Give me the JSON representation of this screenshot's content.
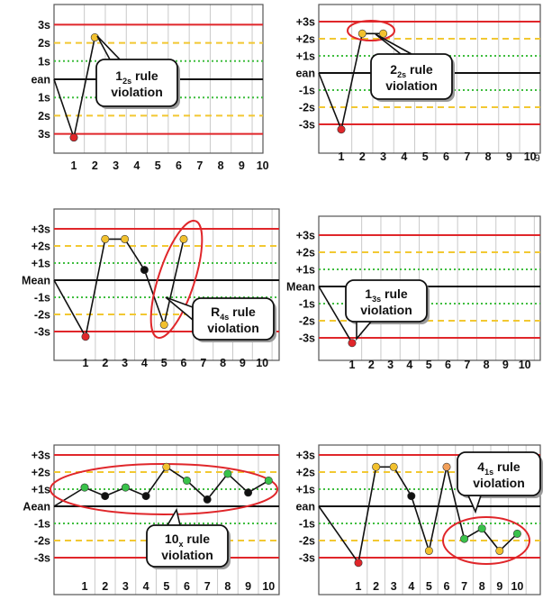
{
  "colors": {
    "sd3": "#e0262a",
    "sd2": "#f2c832",
    "sd1": "#3fbd3f",
    "mean": "#111111",
    "grid": "#c9c9c9",
    "point_red": "#e0262a",
    "point_yellow": "#f2c12e",
    "point_green": "#39c24a",
    "point_black": "#111111",
    "point_orange": "#f2a05a"
  },
  "panels": [
    {
      "id": "panel-1s-2",
      "y_labels": {
        "p3": "3s",
        "p2": "2s",
        "p1": "1s",
        "mean": "ean",
        "m1": "1s",
        "m2": "2s",
        "m3": "3s"
      },
      "x_labels": [
        "1",
        "2",
        "3",
        "4",
        "5",
        "6",
        "7",
        "8",
        "9",
        "10"
      ],
      "points": [
        {
          "x": 1,
          "y": -3.2,
          "c": "red"
        },
        {
          "x": 2,
          "y": 2.3,
          "c": "yellow"
        }
      ],
      "callout": {
        "line1": "1",
        "sub": "2s",
        "after": " rule",
        "line2": "violation"
      },
      "highlight": null
    },
    {
      "id": "panel-2-2s",
      "y_labels": {
        "p3": "+3s",
        "p2": "+2s",
        "p1": "+1s",
        "mean": "ean",
        "m1": "-1s",
        "m2": "-2s",
        "m3": "-3s"
      },
      "x_labels": [
        "1",
        "2",
        "3",
        "4",
        "5",
        "6",
        "7",
        "8",
        "9",
        "10"
      ],
      "points": [
        {
          "x": 1,
          "y": -3.3,
          "c": "red"
        },
        {
          "x": 2,
          "y": 2.3,
          "c": "yellow"
        },
        {
          "x": 3,
          "y": 2.3,
          "c": "yellow"
        }
      ],
      "callout": {
        "line1": "2",
        "sub": "2s",
        "after": " rule",
        "line2": "violation"
      },
      "highlight": "2-3",
      "stray": "9"
    },
    {
      "id": "panel-r-4s",
      "y_labels": {
        "p3": "+3s",
        "p2": "+2s",
        "p1": "+1s",
        "mean": "Mean",
        "m1": "-1s",
        "m2": "-2s",
        "m3": "-3s"
      },
      "x_labels": [
        "1",
        "2",
        "3",
        "4",
        "5",
        "6",
        "7",
        "8",
        "9",
        "10"
      ],
      "points": [
        {
          "x": 1,
          "y": -3.3,
          "c": "red"
        },
        {
          "x": 2,
          "y": 2.4,
          "c": "yellow"
        },
        {
          "x": 3,
          "y": 2.4,
          "c": "yellow"
        },
        {
          "x": 4,
          "y": 0.6,
          "c": "black"
        },
        {
          "x": 5,
          "y": -2.6,
          "c": "yellow"
        },
        {
          "x": 6,
          "y": 2.4,
          "c": "yellow"
        }
      ],
      "callout": {
        "line1": "R",
        "sub": "4s",
        "after": " rule",
        "line2": "violation"
      },
      "highlight": "5-6"
    },
    {
      "id": "panel-1-3s",
      "y_labels": {
        "p3": "+3s",
        "p2": "+2s",
        "p1": "+1s",
        "mean": "Mean",
        "m1": "-1s",
        "m2": "-2s",
        "m3": "-3s"
      },
      "x_labels": [
        "1",
        "2",
        "3",
        "4",
        "5",
        "6",
        "7",
        "8",
        "9",
        "10"
      ],
      "points": [
        {
          "x": 1,
          "y": -3.3,
          "c": "red"
        }
      ],
      "callout": {
        "line1": "1",
        "sub": "3s",
        "after": " rule",
        "line2": "violation"
      },
      "highlight": null
    },
    {
      "id": "panel-10x",
      "y_labels": {
        "p3": "+3s",
        "p2": "+2s",
        "p1": "+1s",
        "mean": "Aean",
        "m1": "-1s",
        "m2": "-2s",
        "m3": "-3s"
      },
      "x_labels": [
        "1",
        "2",
        "3",
        "4",
        "5",
        "6",
        "7",
        "8",
        "9",
        "10"
      ],
      "points": [
        {
          "x": 1,
          "y": 1.1,
          "c": "green"
        },
        {
          "x": 2,
          "y": 0.6,
          "c": "black"
        },
        {
          "x": 3,
          "y": 1.1,
          "c": "green"
        },
        {
          "x": 4,
          "y": 0.6,
          "c": "black"
        },
        {
          "x": 5,
          "y": 2.3,
          "c": "yellow"
        },
        {
          "x": 6,
          "y": 1.5,
          "c": "green"
        },
        {
          "x": 7,
          "y": 0.4,
          "c": "black"
        },
        {
          "x": 8,
          "y": 1.9,
          "c": "green"
        },
        {
          "x": 9,
          "y": 0.8,
          "c": "black"
        },
        {
          "x": 10,
          "y": 1.5,
          "c": "green"
        }
      ],
      "callout": {
        "line1": "10",
        "sub": "x",
        "after": " rule",
        "line2": "violation"
      },
      "highlight": "1-10"
    },
    {
      "id": "panel-4-1s",
      "y_labels": {
        "p3": "+3s",
        "p2": "+2s",
        "p1": "+1s",
        "mean": "ean",
        "m1": "-1s",
        "m2": "-2s",
        "m3": "-3s"
      },
      "x_labels": [
        "1",
        "2",
        "3",
        "4",
        "5",
        "6",
        "7",
        "8",
        "9",
        "10"
      ],
      "points": [
        {
          "x": 1,
          "y": -3.3,
          "c": "red"
        },
        {
          "x": 2,
          "y": 2.3,
          "c": "yellow"
        },
        {
          "x": 3,
          "y": 2.3,
          "c": "yellow"
        },
        {
          "x": 4,
          "y": 0.6,
          "c": "black"
        },
        {
          "x": 5,
          "y": -2.6,
          "c": "yellow"
        },
        {
          "x": 6,
          "y": 2.3,
          "c": "orange"
        },
        {
          "x": 7,
          "y": -1.9,
          "c": "green"
        },
        {
          "x": 8,
          "y": -1.3,
          "c": "green"
        },
        {
          "x": 9,
          "y": -2.6,
          "c": "yellow"
        },
        {
          "x": 10,
          "y": -1.6,
          "c": "green"
        }
      ],
      "callout": {
        "line1": "4",
        "sub": "1s",
        "after": " rule",
        "line2": "violation"
      },
      "highlight": "7-10"
    }
  ]
}
